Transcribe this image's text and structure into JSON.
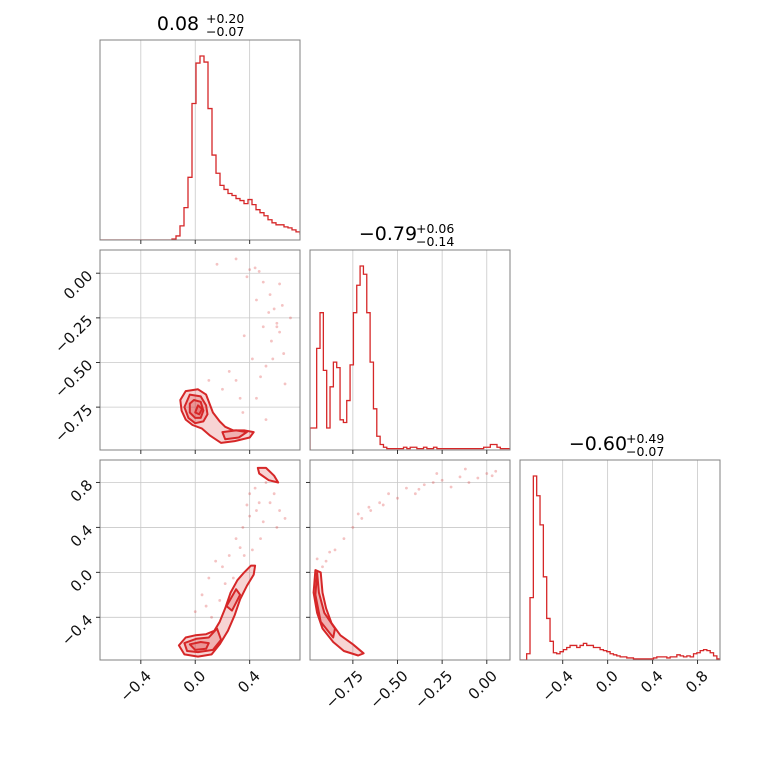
{
  "chart_data": {
    "type": "corner",
    "color": "#d62728",
    "grid": true,
    "parameters": [
      {
        "title": "0.08",
        "upper": "+0.20",
        "lower": "−0.07",
        "range": [
          -0.7,
          0.77
        ],
        "ticks": [
          -0.4,
          0.0,
          0.4
        ],
        "tick_labels": [
          "−0.4",
          "0.0",
          "0.4"
        ],
        "hist": {
          "start": -0.7,
          "step": 0.0294,
          "counts": [
            0,
            0,
            0,
            0,
            0,
            0,
            0,
            0,
            0,
            0,
            0,
            0,
            0,
            0,
            0,
            0,
            0,
            0,
            1,
            4,
            14,
            32,
            62,
            135,
            175,
            182,
            176,
            130,
            84,
            66,
            54,
            50,
            46,
            44,
            41,
            39,
            36,
            40,
            35,
            30,
            27,
            24,
            20,
            17,
            15,
            15,
            13,
            12,
            10,
            8,
            6,
            6,
            4,
            4,
            3,
            2,
            2,
            3,
            1,
            0
          ]
        }
      },
      {
        "title": "−0.79",
        "upper": "+0.06",
        "lower": "−0.14",
        "range": [
          -0.99,
          0.13
        ],
        "ticks": [
          -0.75,
          -0.5,
          -0.25,
          0.0
        ],
        "tick_labels": [
          "−0.75",
          "−0.50",
          "−0.25",
          "0.00"
        ],
        "hist": {
          "start": -0.99,
          "step": 0.0187,
          "counts": [
            16,
            16,
            74,
            100,
            58,
            16,
            46,
            64,
            60,
            22,
            20,
            36,
            62,
            100,
            120,
            134,
            128,
            100,
            64,
            30,
            10,
            4,
            2,
            1,
            1,
            1,
            1,
            1,
            2,
            1,
            2,
            2,
            1,
            1,
            2,
            1,
            1,
            2,
            1,
            1,
            1,
            1,
            1,
            1,
            1,
            1,
            1,
            1,
            1,
            1,
            1,
            1,
            2,
            2,
            4,
            4,
            2,
            1,
            1,
            1
          ]
        }
      },
      {
        "title": "−0.60",
        "upper": "+0.49",
        "lower": "−0.07",
        "range": [
          -0.78,
          1.0
        ],
        "ticks": [
          -0.4,
          0.0,
          0.4,
          0.8
        ],
        "tick_labels": [
          "−0.4",
          "0.0",
          "0.4",
          "0.8"
        ],
        "hist": {
          "start": -0.78,
          "step": 0.0297,
          "counts": [
            0,
            0,
            6,
            60,
            177,
            158,
            130,
            80,
            40,
            18,
            7,
            6,
            8,
            10,
            12,
            14,
            14,
            12,
            14,
            16,
            14,
            14,
            12,
            12,
            10,
            9,
            8,
            6,
            5,
            4,
            3,
            3,
            2,
            2,
            1,
            1,
            1,
            1,
            1,
            1,
            2,
            3,
            3,
            3,
            2,
            3,
            3,
            5,
            4,
            3,
            4,
            3,
            6,
            7,
            9,
            10,
            9,
            7,
            4,
            1
          ]
        }
      }
    ],
    "contours": [
      {
        "x_param": 0,
        "y_param": 1,
        "levels": [
          [
            [
              -0.07,
              -0.66
            ],
            [
              0.02,
              -0.65
            ],
            [
              0.08,
              -0.68
            ],
            [
              0.11,
              -0.74
            ],
            [
              0.13,
              -0.78
            ],
            [
              0.18,
              -0.83
            ],
            [
              0.22,
              -0.86
            ],
            [
              0.28,
              -0.88
            ],
            [
              0.36,
              -0.88
            ],
            [
              0.43,
              -0.89
            ],
            [
              0.4,
              -0.92
            ],
            [
              0.29,
              -0.94
            ],
            [
              0.19,
              -0.95
            ],
            [
              0.11,
              -0.91
            ],
            [
              0.05,
              -0.87
            ],
            [
              -0.02,
              -0.85
            ],
            [
              -0.07,
              -0.82
            ],
            [
              -0.1,
              -0.77
            ],
            [
              -0.11,
              -0.71
            ]
          ],
          [
            [
              -0.04,
              -0.68
            ],
            [
              0.04,
              -0.69
            ],
            [
              0.08,
              -0.74
            ],
            [
              0.09,
              -0.79
            ],
            [
              0.06,
              -0.83
            ],
            [
              0.0,
              -0.84
            ],
            [
              -0.05,
              -0.81
            ],
            [
              -0.08,
              -0.75
            ]
          ],
          [
            [
              -0.01,
              -0.71
            ],
            [
              0.04,
              -0.72
            ],
            [
              0.06,
              -0.77
            ],
            [
              0.04,
              -0.81
            ],
            [
              0.0,
              -0.81
            ],
            [
              -0.04,
              -0.78
            ],
            [
              -0.04,
              -0.73
            ]
          ],
          [
            [
              0.02,
              -0.74
            ],
            [
              0.05,
              -0.76
            ],
            [
              0.03,
              -0.79
            ],
            [
              0.0,
              -0.78
            ]
          ],
          [
            [
              0.2,
              -0.89
            ],
            [
              0.3,
              -0.88
            ],
            [
              0.38,
              -0.89
            ],
            [
              0.32,
              -0.92
            ],
            [
              0.22,
              -0.93
            ]
          ]
        ],
        "points": [
          [
            0.4,
            0.02
          ],
          [
            0.44,
            0.03
          ],
          [
            0.47,
            0.01
          ],
          [
            0.38,
            -0.02
          ],
          [
            0.5,
            -0.05
          ],
          [
            0.55,
            -0.12
          ],
          [
            0.58,
            -0.2
          ],
          [
            0.6,
            -0.28
          ],
          [
            0.62,
            -0.33
          ],
          [
            0.56,
            -0.38
          ],
          [
            0.65,
            -0.45
          ],
          [
            0.52,
            -0.52
          ],
          [
            0.48,
            -0.58
          ],
          [
            0.66,
            -0.62
          ],
          [
            0.3,
            -0.6
          ],
          [
            0.25,
            -0.55
          ],
          [
            0.45,
            -0.7
          ],
          [
            0.35,
            -0.78
          ],
          [
            0.52,
            -0.82
          ],
          [
            0.16,
            0.05
          ],
          [
            0.3,
            0.08
          ],
          [
            0.62,
            -0.06
          ],
          [
            0.7,
            -0.25
          ],
          [
            0.57,
            -0.48
          ],
          [
            0.6,
            -0.3
          ],
          [
            0.64,
            -0.18
          ],
          [
            0.1,
            -0.6
          ],
          [
            0.2,
            -0.65
          ],
          [
            0.33,
            -0.7
          ],
          [
            0.42,
            -0.48
          ],
          [
            0.5,
            -0.3
          ],
          [
            0.54,
            -0.22
          ],
          [
            0.45,
            -0.15
          ],
          [
            0.36,
            -0.35
          ]
        ]
      },
      {
        "x_param": 0,
        "y_param": 2,
        "levels": [
          [
            [
              -0.12,
              -0.65
            ],
            [
              -0.07,
              -0.58
            ],
            [
              0.0,
              -0.56
            ],
            [
              0.08,
              -0.55
            ],
            [
              0.14,
              -0.52
            ],
            [
              0.18,
              -0.44
            ],
            [
              0.22,
              -0.32
            ],
            [
              0.26,
              -0.18
            ],
            [
              0.31,
              -0.07
            ],
            [
              0.36,
              0.0
            ],
            [
              0.41,
              0.06
            ],
            [
              0.44,
              0.06
            ],
            [
              0.43,
              -0.02
            ],
            [
              0.38,
              -0.12
            ],
            [
              0.33,
              -0.24
            ],
            [
              0.29,
              -0.38
            ],
            [
              0.24,
              -0.52
            ],
            [
              0.18,
              -0.64
            ],
            [
              0.12,
              -0.73
            ],
            [
              0.02,
              -0.75
            ],
            [
              -0.08,
              -0.73
            ]
          ],
          [
            [
              -0.08,
              -0.63
            ],
            [
              0.01,
              -0.59
            ],
            [
              0.1,
              -0.58
            ],
            [
              0.16,
              -0.5
            ],
            [
              0.19,
              -0.6
            ],
            [
              0.13,
              -0.69
            ],
            [
              0.02,
              -0.71
            ],
            [
              -0.06,
              -0.7
            ]
          ],
          [
            [
              -0.04,
              -0.64
            ],
            [
              0.04,
              -0.62
            ],
            [
              0.1,
              -0.63
            ],
            [
              0.08,
              -0.68
            ],
            [
              0.0,
              -0.69
            ]
          ],
          [
            [
              0.23,
              -0.3
            ],
            [
              0.3,
              -0.15
            ],
            [
              0.33,
              -0.2
            ],
            [
              0.27,
              -0.34
            ]
          ],
          [
            [
              0.46,
              0.93
            ],
            [
              0.52,
              0.93
            ],
            [
              0.58,
              0.86
            ],
            [
              0.61,
              0.8
            ],
            [
              0.54,
              0.82
            ],
            [
              0.47,
              0.88
            ]
          ]
        ],
        "points": [
          [
            0.4,
            0.7
          ],
          [
            0.45,
            0.55
          ],
          [
            0.5,
            0.45
          ],
          [
            0.48,
            0.3
          ],
          [
            0.42,
            0.2
          ],
          [
            0.55,
            0.62
          ],
          [
            0.6,
            0.4
          ],
          [
            0.35,
            0.4
          ],
          [
            0.3,
            0.3
          ],
          [
            0.25,
            0.15
          ],
          [
            0.2,
            0.05
          ],
          [
            0.15,
            0.1
          ],
          [
            0.1,
            -0.05
          ],
          [
            0.05,
            -0.2
          ],
          [
            0.0,
            -0.35
          ],
          [
            0.44,
            0.75
          ],
          [
            0.52,
            0.8
          ],
          [
            0.38,
            0.6
          ],
          [
            0.62,
            0.55
          ],
          [
            0.66,
            0.48
          ],
          [
            0.28,
            -0.05
          ],
          [
            0.18,
            -0.25
          ],
          [
            0.12,
            -0.4
          ],
          [
            0.36,
            0.15
          ],
          [
            0.58,
            0.7
          ],
          [
            0.47,
            0.62
          ],
          [
            0.4,
            0.5
          ],
          [
            0.33,
            0.22
          ],
          [
            0.22,
            -0.1
          ],
          [
            0.08,
            -0.3
          ]
        ]
      },
      {
        "x_param": 1,
        "y_param": 2,
        "levels": [
          [
            [
              -0.96,
              0.02
            ],
            [
              -0.93,
              0.0
            ],
            [
              -0.92,
              -0.18
            ],
            [
              -0.9,
              -0.32
            ],
            [
              -0.87,
              -0.45
            ],
            [
              -0.82,
              -0.56
            ],
            [
              -0.75,
              -0.64
            ],
            [
              -0.69,
              -0.72
            ],
            [
              -0.72,
              -0.74
            ],
            [
              -0.8,
              -0.7
            ],
            [
              -0.86,
              -0.62
            ],
            [
              -0.92,
              -0.5
            ],
            [
              -0.95,
              -0.36
            ],
            [
              -0.97,
              -0.18
            ]
          ],
          [
            [
              -0.95,
              0.0
            ],
            [
              -0.94,
              -0.18
            ],
            [
              -0.91,
              -0.36
            ],
            [
              -0.85,
              -0.5
            ],
            [
              -0.86,
              -0.58
            ],
            [
              -0.93,
              -0.44
            ],
            [
              -0.96,
              -0.2
            ]
          ]
        ],
        "points": [
          [
            -0.45,
            0.75
          ],
          [
            -0.35,
            0.78
          ],
          [
            -0.25,
            0.82
          ],
          [
            -0.15,
            0.85
          ],
          [
            -0.05,
            0.84
          ],
          [
            0.0,
            0.88
          ],
          [
            0.05,
            0.9
          ],
          [
            -0.3,
            0.8
          ],
          [
            -0.2,
            0.76
          ],
          [
            -0.55,
            0.7
          ],
          [
            -0.6,
            0.62
          ],
          [
            -0.65,
            0.55
          ],
          [
            -0.7,
            0.48
          ],
          [
            -0.75,
            0.4
          ],
          [
            -0.8,
            0.3
          ],
          [
            -0.85,
            0.2
          ],
          [
            -0.9,
            0.1
          ],
          [
            -0.4,
            0.7
          ],
          [
            -0.1,
            0.8
          ],
          [
            -0.5,
            0.66
          ],
          [
            -0.66,
            0.58
          ],
          [
            -0.72,
            0.52
          ],
          [
            -0.92,
            0.05
          ],
          [
            -0.95,
            0.12
          ],
          [
            -0.88,
            0.18
          ],
          [
            -0.12,
            0.92
          ],
          [
            0.03,
            0.86
          ],
          [
            -0.28,
            0.88
          ],
          [
            -0.38,
            0.74
          ],
          [
            -0.58,
            0.6
          ]
        ]
      }
    ]
  }
}
